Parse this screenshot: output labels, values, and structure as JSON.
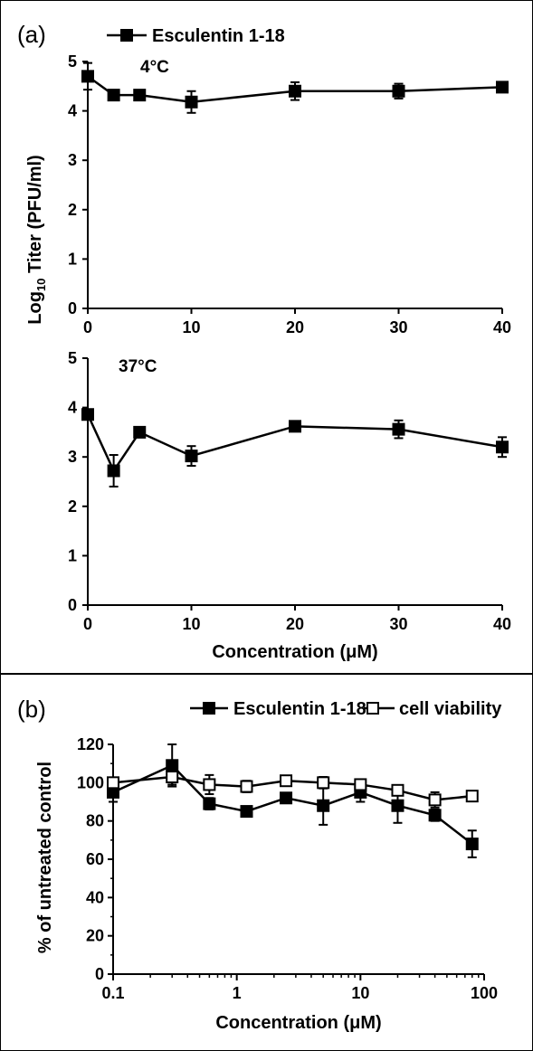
{
  "chart_data": [
    {
      "panel": "(a)",
      "type": "line",
      "legend": [
        "Esculentin 1-18"
      ],
      "ylabel": "Log10 Titer (PFU/ml)",
      "ylabel_parts": [
        "Log",
        "10",
        " Titer (PFU/ml)"
      ],
      "xlabel": "Concentration (μM)",
      "xticks": [
        "0",
        "10",
        "20",
        "30",
        "40"
      ],
      "yticks": [
        "0",
        "1",
        "2",
        "3",
        "4",
        "5"
      ],
      "xlim": [
        0,
        40
      ],
      "ylim": [
        0,
        5
      ],
      "subplots": [
        {
          "annotation": "4°C",
          "x": [
            0,
            2.5,
            5,
            10,
            20,
            30,
            40
          ],
          "series": [
            {
              "name": "Esculentin 1-18",
              "marker": "filled-square",
              "values": [
                4.7,
                4.32,
                4.32,
                4.18,
                4.4,
                4.4,
                4.48
              ],
              "error": [
                0.27,
                0.03,
                0.03,
                0.22,
                0.18,
                0.15,
                0.04
              ]
            }
          ]
        },
        {
          "annotation": "37°C",
          "x": [
            0,
            2.5,
            5,
            10,
            20,
            30,
            40
          ],
          "series": [
            {
              "name": "Esculentin 1-18",
              "marker": "filled-square",
              "values": [
                3.86,
                2.72,
                3.5,
                3.02,
                3.62,
                3.56,
                3.2
              ],
              "error": [
                0.07,
                0.32,
                0.05,
                0.2,
                0.05,
                0.18,
                0.2
              ]
            }
          ]
        }
      ]
    },
    {
      "panel": "(b)",
      "type": "line",
      "xscale": "log",
      "ylabel": "% of untreated control",
      "xlabel": "Concentration (μM)",
      "xticks": [
        "0.1",
        "1",
        "10",
        "100"
      ],
      "yticks": [
        "0",
        "20",
        "40",
        "60",
        "80",
        "100",
        "120"
      ],
      "xlim": [
        0.1,
        100
      ],
      "ylim": [
        0,
        120
      ],
      "x": [
        0.1,
        0.3,
        0.6,
        1.2,
        2.5,
        5,
        10,
        20,
        40,
        80
      ],
      "series": [
        {
          "name": "Esculentin 1-18",
          "marker": "filled-square",
          "values": [
            95,
            109,
            89,
            85,
            92,
            88,
            95,
            88,
            83,
            68
          ],
          "error": [
            5,
            11,
            3,
            2,
            2,
            10,
            5,
            9,
            3,
            7
          ]
        },
        {
          "name": "cell viability",
          "marker": "open-square",
          "values": [
            100,
            103,
            99,
            98,
            101,
            100,
            99,
            96,
            91,
            93
          ],
          "error": [
            2,
            4,
            5,
            3,
            2,
            3,
            2,
            2,
            4,
            2
          ]
        }
      ]
    }
  ]
}
